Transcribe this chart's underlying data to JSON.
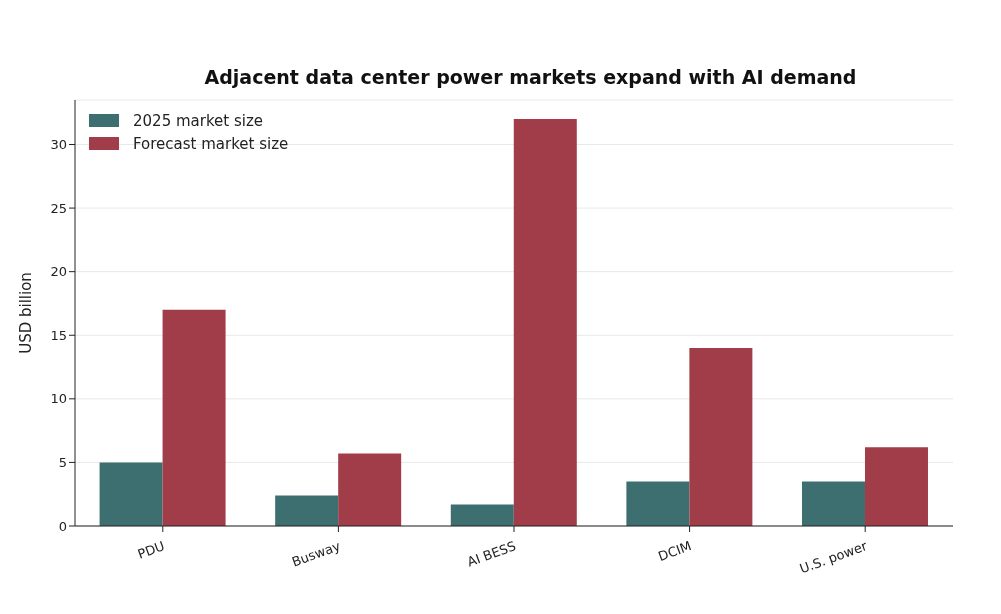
{
  "chart_data": {
    "type": "bar",
    "title": "Adjacent data center power markets expand with AI demand",
    "ylabel": "USD billion",
    "categories": [
      "PDU",
      "Busway",
      "AI BESS",
      "DCIM",
      "U.S. power"
    ],
    "series": [
      {
        "name": "2025 market size",
        "color": "#3d6e70",
        "values": [
          5,
          2.4,
          1.7,
          3.5,
          3.5
        ]
      },
      {
        "name": "Forecast market size",
        "color": "#a03d48",
        "values": [
          17,
          5.7,
          32,
          14,
          6.2
        ]
      }
    ],
    "ylim": [
      0,
      33.5
    ],
    "yticks": [
      0,
      5,
      10,
      15,
      20,
      25,
      30
    ],
    "grid": "y",
    "legend": "top left"
  }
}
